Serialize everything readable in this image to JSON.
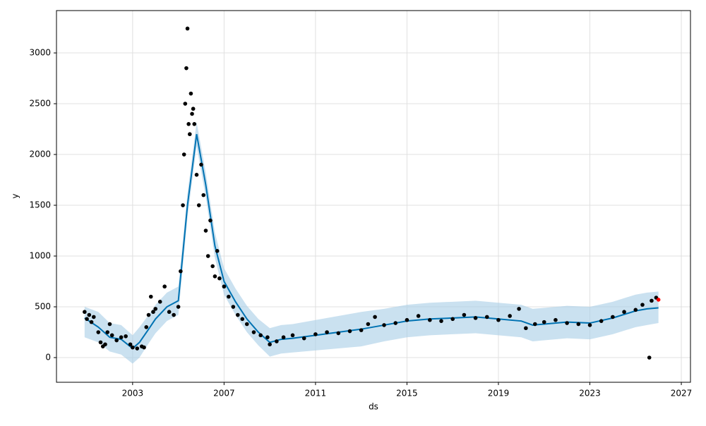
{
  "chart_data": {
    "type": "forecast",
    "xlabel": "ds",
    "ylabel": "y",
    "grid": true,
    "xlim": [
      1999.67,
      2027.4
    ],
    "xticks": [
      2003,
      2007,
      2011,
      2015,
      2019,
      2023,
      2027
    ],
    "ylim": [
      -243,
      3417
    ],
    "yticks": [
      0,
      500,
      1000,
      1500,
      2000,
      2500,
      3000
    ],
    "series": [
      {
        "type": "band",
        "color": "#a6cde6",
        "x": [
          2000.9,
          2001.5,
          2002.0,
          2002.5,
          2003.0,
          2003.3,
          2003.7,
          2004.0,
          2004.5,
          2005.0,
          2005.4,
          2005.8,
          2006.2,
          2006.6,
          2007.0,
          2007.5,
          2008.0,
          2008.5,
          2009.0,
          2009.5,
          2010.0,
          2011.0,
          2012.0,
          2013.0,
          2014.0,
          2015.0,
          2016.0,
          2017.0,
          2018.0,
          2019.0,
          2020.0,
          2020.5,
          2021.0,
          2022.0,
          2023.0,
          2024.0,
          2025.0,
          2025.5,
          2026.0
        ],
        "lower": [
          200,
          150,
          60,
          30,
          -60,
          0,
          140,
          240,
          360,
          420,
          1380,
          2080,
          1580,
          980,
          620,
          420,
          250,
          120,
          10,
          40,
          50,
          70,
          90,
          110,
          160,
          200,
          220,
          230,
          240,
          220,
          200,
          160,
          170,
          190,
          180,
          230,
          300,
          320,
          340
        ],
        "upper": [
          500,
          450,
          340,
          320,
          220,
          300,
          420,
          520,
          640,
          700,
          1620,
          2320,
          1820,
          1230,
          880,
          680,
          510,
          380,
          290,
          320,
          330,
          370,
          410,
          450,
          480,
          520,
          540,
          550,
          560,
          540,
          520,
          480,
          490,
          510,
          500,
          550,
          620,
          640,
          650
        ]
      },
      {
        "type": "line",
        "color": "#0072b2",
        "x": [
          2000.9,
          2001.5,
          2002.0,
          2002.5,
          2003.0,
          2003.3,
          2003.7,
          2004.0,
          2004.5,
          2005.0,
          2005.4,
          2005.8,
          2006.2,
          2006.6,
          2007.0,
          2007.5,
          2008.0,
          2008.5,
          2009.0,
          2009.5,
          2010.0,
          2011.0,
          2012.0,
          2013.0,
          2014.0,
          2015.0,
          2016.0,
          2017.0,
          2018.0,
          2019.0,
          2020.0,
          2020.5,
          2021.0,
          2022.0,
          2023.0,
          2024.0,
          2025.0,
          2025.5,
          2026.0
        ],
        "values": [
          390,
          300,
          200,
          180,
          90,
          150,
          280,
          380,
          500,
          560,
          1500,
          2200,
          1700,
          1100,
          750,
          550,
          380,
          250,
          150,
          180,
          190,
          220,
          250,
          280,
          320,
          360,
          380,
          390,
          400,
          380,
          360,
          320,
          330,
          350,
          340,
          390,
          460,
          480,
          490
        ]
      },
      {
        "type": "scatter",
        "color": "#000000",
        "x": [
          2000.9,
          2001.0,
          2001.1,
          2001.2,
          2001.3,
          2001.5,
          2001.6,
          2001.7,
          2001.8,
          2001.9,
          2002.0,
          2002.1,
          2002.3,
          2002.5,
          2002.7,
          2002.9,
          2003.0,
          2003.2,
          2003.4,
          2003.5,
          2003.6,
          2003.7,
          2003.8,
          2003.9,
          2004.0,
          2004.2,
          2004.4,
          2004.6,
          2004.8,
          2005.0,
          2005.1,
          2005.2,
          2005.25,
          2005.3,
          2005.35,
          2005.4,
          2005.45,
          2005.5,
          2005.55,
          2005.6,
          2005.65,
          2005.7,
          2005.8,
          2005.9,
          2006.0,
          2006.1,
          2006.2,
          2006.3,
          2006.4,
          2006.5,
          2006.6,
          2006.7,
          2006.8,
          2007.0,
          2007.2,
          2007.4,
          2007.6,
          2007.8,
          2008.0,
          2008.3,
          2008.6,
          2008.9,
          2009.0,
          2009.3,
          2009.6,
          2010.0,
          2010.5,
          2011.0,
          2011.5,
          2012.0,
          2012.5,
          2013.0,
          2013.3,
          2013.6,
          2014.0,
          2014.5,
          2015.0,
          2015.5,
          2016.0,
          2016.5,
          2017.0,
          2017.5,
          2018.0,
          2018.5,
          2019.0,
          2019.5,
          2019.9,
          2020.2,
          2020.6,
          2021.0,
          2021.5,
          2022.0,
          2022.5,
          2023.0,
          2023.5,
          2024.0,
          2024.5,
          2025.0,
          2025.3,
          2025.6,
          2025.7,
          2025.9
        ],
        "values": [
          450,
          380,
          420,
          350,
          400,
          250,
          150,
          110,
          130,
          250,
          330,
          220,
          170,
          200,
          210,
          130,
          100,
          90,
          110,
          100,
          300,
          420,
          600,
          450,
          480,
          550,
          700,
          450,
          420,
          500,
          850,
          1500,
          2000,
          2500,
          2850,
          3240,
          2300,
          2200,
          2600,
          2400,
          2450,
          2300,
          1800,
          1500,
          1900,
          1600,
          1250,
          1000,
          1350,
          900,
          800,
          1050,
          780,
          700,
          600,
          500,
          420,
          380,
          330,
          250,
          220,
          200,
          130,
          160,
          200,
          220,
          190,
          230,
          250,
          240,
          260,
          270,
          330,
          400,
          320,
          340,
          370,
          410,
          370,
          360,
          380,
          420,
          390,
          400,
          370,
          410,
          480,
          290,
          330,
          350,
          370,
          340,
          330,
          320,
          360,
          400,
          450,
          470,
          520,
          0,
          560,
          590
        ]
      },
      {
        "type": "scatter",
        "color": "#ff0000",
        "x": [
          2026.0
        ],
        "values": [
          570
        ]
      }
    ]
  }
}
